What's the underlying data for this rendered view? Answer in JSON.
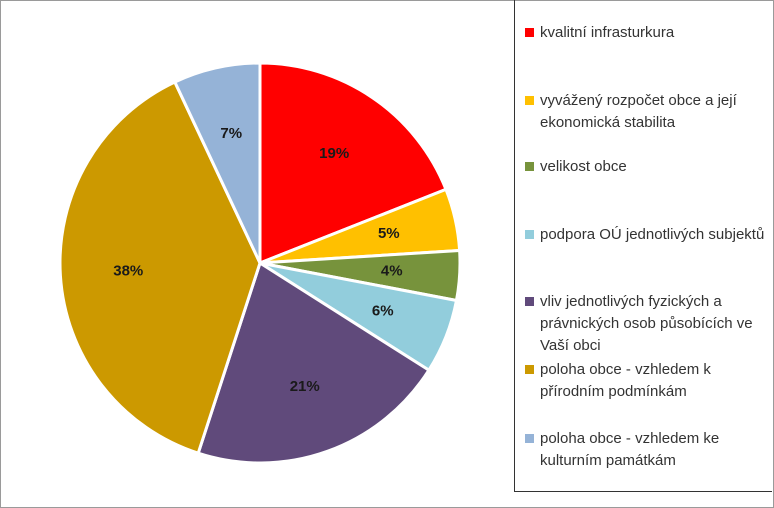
{
  "chart_data": {
    "type": "pie",
    "categories": [
      "kvalitní infrasturkura",
      "vyvážený rozpočet obce a její ekonomická stabilita",
      "velikost obce",
      "podpora OÚ jednotlivých subjektů",
      "vliv jednotlivých fyzických a právnických osob působících ve Vaší obci",
      "poloha obce - vzhledem k přírodním podmínkám",
      "poloha obce - vzhledem ke kulturním památkám"
    ],
    "values": [
      19,
      5,
      4,
      6,
      21,
      38,
      7
    ],
    "value_labels": [
      "19%",
      "5%",
      "4%",
      "6%",
      "21%",
      "38%",
      "7%"
    ],
    "colors": [
      "#ff0000",
      "#ffc000",
      "#77933c",
      "#92cddc",
      "#604a7b",
      "#cc9900",
      "#95b3d7"
    ],
    "legend": "right"
  }
}
